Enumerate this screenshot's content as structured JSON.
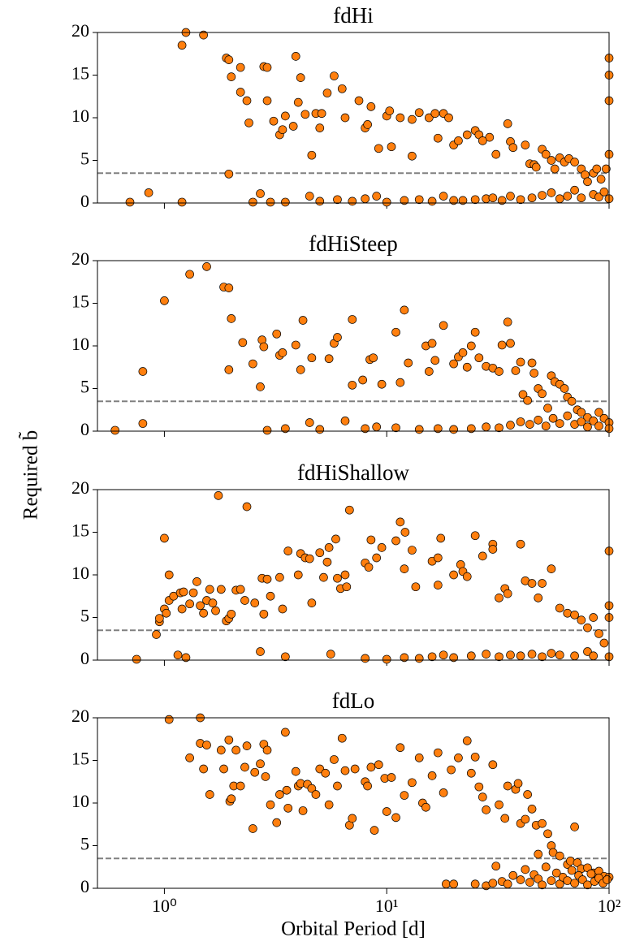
{
  "supylabel": "Required b̃",
  "chart_data": [
    {
      "type": "scatter",
      "title": "fdHi",
      "color": "#ff7f0e",
      "edgecolor": "#000000",
      "hline": 3.5,
      "hline_color": "#808080",
      "xlim": [
        0.5,
        100
      ],
      "xscale": "log",
      "ylim": [
        0,
        20
      ],
      "yticks": [
        0,
        5,
        10,
        15,
        20
      ],
      "x": [
        1.25,
        1.2,
        1.5,
        1.9,
        1.95,
        2.0,
        2.2,
        2.2,
        2.35,
        2.4,
        2.8,
        2.9,
        2.9,
        3.1,
        3.3,
        3.4,
        3.5,
        3.8,
        3.9,
        4.0,
        4.1,
        4.3,
        4.6,
        4.8,
        5.1,
        5.0,
        5.4,
        5.8,
        6.3,
        6.5,
        7.5,
        8.0,
        8.2,
        8.5,
        9.2,
        10,
        10.3,
        10.5,
        11.5,
        13,
        13,
        14,
        15.5,
        16.5,
        17,
        18,
        19,
        20,
        21,
        23,
        25,
        26,
        29,
        27,
        31,
        35,
        36,
        37,
        42,
        44,
        46,
        47,
        50,
        52,
        55,
        57,
        60,
        63,
        66,
        70,
        75,
        78,
        85,
        88,
        92,
        97,
        100,
        100,
        100,
        100,
        1.95,
        0.85,
        0.7,
        1.2,
        2.5,
        2.7,
        3.0,
        3.5,
        4.5,
        5,
        6,
        7,
        8,
        9,
        10,
        12,
        14,
        16,
        18,
        20,
        22,
        25,
        28,
        30,
        33,
        36,
        40,
        45,
        50,
        55,
        60,
        65,
        70,
        75,
        80,
        85,
        90,
        95,
        100
      ],
      "values": [
        20,
        18.5,
        19.7,
        17,
        16.8,
        14.8,
        15.9,
        13,
        12,
        9.4,
        16,
        15.9,
        12,
        9.6,
        8,
        8.6,
        10.2,
        9,
        17.2,
        11.8,
        14.7,
        10.4,
        5.6,
        10.5,
        10.5,
        8.8,
        12.9,
        14.9,
        13.4,
        10,
        12,
        8.8,
        9.2,
        11.3,
        6.4,
        10.2,
        10.8,
        6.6,
        10,
        9.8,
        5.5,
        10.6,
        10,
        10.5,
        7.6,
        10.5,
        10,
        6.8,
        7.3,
        8,
        8.5,
        8,
        7.7,
        7.3,
        5.7,
        9.3,
        7.2,
        6.5,
        6.8,
        4.6,
        4.5,
        4.2,
        6.3,
        5.7,
        5,
        4,
        5.3,
        4.8,
        5.2,
        4.8,
        4,
        3.3,
        3.5,
        4,
        2.8,
        4,
        5.7,
        12,
        15,
        17,
        3.4,
        1.2,
        0.1,
        0.1,
        0.1,
        1.1,
        0.1,
        0.1,
        0.8,
        0.2,
        0.4,
        0.2,
        0.5,
        0.8,
        0.1,
        0.3,
        0.4,
        0.2,
        0.8,
        0.3,
        0.3,
        0.4,
        0.5,
        0.6,
        0.3,
        0.8,
        0.4,
        0.6,
        0.9,
        1.2,
        0.5,
        0.8,
        1.5,
        0.6,
        2.5,
        1.0,
        0.7,
        1.3,
        0.5
      ]
    },
    {
      "type": "scatter",
      "title": "fdHiSteep",
      "color": "#ff7f0e",
      "edgecolor": "#000000",
      "hline": 3.5,
      "hline_color": "#808080",
      "xlim": [
        0.5,
        100
      ],
      "xscale": "log",
      "ylim": [
        0,
        20
      ],
      "yticks": [
        0,
        5,
        10,
        15,
        20
      ],
      "x": [
        0.6,
        0.8,
        0.8,
        1.0,
        1.3,
        1.55,
        1.85,
        1.95,
        2.0,
        1.95,
        2.25,
        2.5,
        2.7,
        2.75,
        2.8,
        3.2,
        3.3,
        3.4,
        3.9,
        4.1,
        4.2,
        4.6,
        5.5,
        5.8,
        6.0,
        7.0,
        7.0,
        7.8,
        8.4,
        8.7,
        9.5,
        11,
        11.5,
        12,
        12.5,
        15,
        15.5,
        16,
        16.5,
        18,
        20,
        21,
        22,
        23,
        24,
        25,
        26,
        28,
        30,
        32,
        33,
        35,
        36,
        38,
        40,
        41,
        43,
        45,
        46,
        48,
        50,
        53,
        55,
        57,
        60,
        63,
        65,
        68,
        72,
        75,
        80,
        85,
        90,
        95,
        100,
        2.9,
        3.5,
        4.5,
        5,
        6.5,
        8,
        9,
        11,
        14,
        17,
        20,
        24,
        28,
        32,
        36,
        40,
        44,
        48,
        52,
        56,
        60,
        65,
        70,
        75,
        80,
        90,
        100
      ],
      "values": [
        0.1,
        7,
        0.9,
        15.3,
        18.4,
        19.3,
        16.9,
        16.8,
        13.2,
        7.2,
        10.4,
        7.9,
        5.2,
        10.7,
        9.9,
        11.4,
        8.9,
        9.2,
        10.1,
        7.2,
        13,
        8.6,
        8.5,
        10.3,
        11,
        13.1,
        5.4,
        6,
        8.4,
        8.6,
        5.5,
        11.6,
        5.7,
        14.2,
        8,
        10,
        7,
        10.3,
        8.3,
        12.4,
        7.9,
        8.7,
        9.2,
        7.5,
        10,
        11.6,
        8.6,
        7.6,
        7.4,
        7,
        10.1,
        12.8,
        10.3,
        7.1,
        8.1,
        4.3,
        3.6,
        8,
        6.8,
        5,
        4.4,
        2.7,
        6.5,
        5.8,
        5.5,
        5,
        4,
        3.5,
        2.5,
        2.2,
        1.6,
        1.2,
        2.2,
        1.5,
        1,
        0.1,
        0.3,
        1,
        0.2,
        1.2,
        0.3,
        0.5,
        0.4,
        0.2,
        0.3,
        0.2,
        0.3,
        0.5,
        0.4,
        0.7,
        1.1,
        0.8,
        1.3,
        0.6,
        1.5,
        0.9,
        1.8,
        0.8,
        1.1,
        0.5,
        0.6,
        0.3
      ]
    },
    {
      "type": "scatter",
      "title": "fdHiShallow",
      "color": "#ff7f0e",
      "edgecolor": "#000000",
      "hline": 3.5,
      "hline_color": "#808080",
      "xlim": [
        0.5,
        100
      ],
      "xscale": "log",
      "ylim": [
        0,
        20
      ],
      "yticks": [
        0,
        5,
        10,
        15,
        20
      ],
      "x": [
        0.75,
        0.92,
        0.95,
        0.95,
        1.0,
        1.0,
        1.02,
        1.05,
        1.05,
        1.1,
        1.15,
        1.18,
        1.2,
        1.22,
        1.25,
        1.3,
        1.35,
        1.4,
        1.45,
        1.5,
        1.55,
        1.6,
        1.65,
        1.7,
        1.75,
        1.8,
        1.9,
        1.95,
        2.0,
        2.1,
        2.2,
        2.3,
        2.35,
        2.55,
        2.7,
        2.75,
        2.8,
        2.9,
        3.0,
        3.3,
        3.4,
        3.5,
        3.6,
        4.0,
        4.1,
        4.3,
        4.5,
        4.6,
        5.0,
        5.2,
        5.4,
        5.5,
        5.6,
        5.9,
        6.0,
        6.2,
        6.5,
        6.6,
        6.8,
        8,
        8.3,
        8.5,
        9,
        9.5,
        11,
        11.5,
        12,
        12.1,
        13,
        13.5,
        16,
        17,
        17,
        17.5,
        20,
        21.5,
        22,
        23,
        25,
        27,
        30,
        30,
        32,
        34,
        35,
        40,
        42,
        45,
        48,
        50,
        55,
        60,
        65,
        70,
        75,
        80,
        85,
        90,
        100,
        100,
        100,
        8,
        10,
        12,
        14,
        16,
        18,
        20,
        24,
        28,
        32,
        36,
        40,
        45,
        50,
        55,
        60,
        70,
        80,
        85,
        95,
        100
      ],
      "values": [
        0.1,
        3,
        4.5,
        4.9,
        14.3,
        6,
        5.5,
        10,
        7,
        7.5,
        0.6,
        7.9,
        6,
        8,
        0.3,
        6.6,
        7.9,
        9.2,
        6.4,
        5.5,
        7,
        8.3,
        6.7,
        5.8,
        19.3,
        8.3,
        4.6,
        4.9,
        5.4,
        8.2,
        8.3,
        7,
        18,
        6.7,
        1,
        9.6,
        5.4,
        9.5,
        7.5,
        9.7,
        6,
        0.4,
        12.8,
        10,
        12.5,
        12,
        11.9,
        6.7,
        12.6,
        9.7,
        11.5,
        13.2,
        0.7,
        14.2,
        9.6,
        8.4,
        10,
        8.6,
        17.6,
        11.4,
        10.9,
        14.1,
        12,
        13.2,
        14,
        16.2,
        10.7,
        15,
        12.9,
        8.6,
        11.6,
        8.8,
        12,
        14.3,
        10,
        11.2,
        10.4,
        9.8,
        14.6,
        12.2,
        13.6,
        13,
        7.3,
        8.4,
        7.8,
        13.6,
        9.3,
        9,
        7.3,
        9,
        10.7,
        6.1,
        5.5,
        5.3,
        4.7,
        3.8,
        5,
        3.1,
        6.4,
        5,
        12.8,
        0.2,
        0.1,
        0.3,
        0.2,
        0.4,
        0.6,
        0.3,
        0.5,
        0.7,
        0.4,
        0.6,
        0.5,
        0.7,
        0.4,
        0.8,
        0.6,
        0.5,
        1.0,
        0.5,
        2,
        0.4
      ]
    },
    {
      "type": "scatter",
      "title": "fdLo",
      "color": "#ff7f0e",
      "edgecolor": "#000000",
      "hline": 3.5,
      "hline_color": "#808080",
      "xlim": [
        0.5,
        100
      ],
      "xscale": "log",
      "ylim": [
        0,
        20
      ],
      "yticks": [
        0,
        5,
        10,
        15,
        20
      ],
      "xticks": [
        {
          "value": 1,
          "label": "10⁰"
        },
        {
          "value": 10,
          "label": "10¹"
        },
        {
          "value": 100,
          "label": "10²"
        }
      ],
      "xlabel": "Orbital Period [d]",
      "x": [
        1.05,
        1.45,
        1.3,
        1.45,
        1.5,
        1.55,
        1.6,
        1.8,
        1.85,
        1.95,
        1.97,
        2.0,
        2.05,
        2.1,
        2.2,
        2.3,
        2.35,
        2.5,
        2.55,
        2.7,
        2.8,
        2.85,
        2.9,
        3.0,
        3.2,
        3.3,
        3.5,
        3.55,
        3.6,
        3.9,
        4.0,
        4.1,
        4.2,
        4.4,
        4.6,
        4.8,
        5.0,
        5.3,
        5.5,
        5.8,
        6.0,
        6.3,
        6.5,
        6.8,
        7.0,
        7.2,
        8,
        8.2,
        8.5,
        8.8,
        9.2,
        9.8,
        10,
        10.5,
        11,
        11.5,
        12,
        13,
        14,
        14.5,
        15,
        16,
        17,
        18,
        18.5,
        19.5,
        20,
        21,
        23,
        24,
        25,
        26,
        27,
        28,
        30,
        31,
        32,
        34,
        35,
        38,
        39,
        40,
        42,
        43,
        45,
        47,
        48,
        50,
        53,
        55,
        56,
        60,
        65,
        67,
        70,
        72,
        75,
        80,
        85,
        90,
        95,
        100,
        25,
        28,
        30,
        33,
        35,
        37,
        40,
        42,
        44,
        46,
        48,
        50,
        52,
        55,
        58,
        60,
        62,
        65,
        68,
        70,
        73,
        76,
        80,
        83,
        86,
        90,
        94,
        98
      ],
      "values": [
        19.8,
        20,
        15.3,
        17,
        14,
        16.8,
        11,
        16.2,
        14,
        17.4,
        10.2,
        10.5,
        12,
        16.2,
        12,
        14.2,
        16.7,
        7,
        13.6,
        14.6,
        16.9,
        13.1,
        16.2,
        9.8,
        7.7,
        11,
        18.3,
        11.5,
        9.4,
        13.7,
        12,
        12.3,
        9.1,
        12.2,
        11.7,
        11,
        14,
        13.5,
        9.8,
        15.1,
        12,
        17.6,
        13.8,
        7.4,
        8.2,
        14,
        12.5,
        12,
        14.2,
        6.8,
        14.5,
        12.9,
        9,
        13,
        8.3,
        16.5,
        10.9,
        12.4,
        15.3,
        10,
        9.5,
        13.2,
        15.9,
        11.2,
        0.5,
        13.9,
        0.5,
        15.3,
        17.3,
        13.5,
        15.4,
        11.9,
        10.7,
        9.2,
        14.5,
        2.6,
        9.8,
        8.2,
        12,
        11.6,
        12.3,
        7.6,
        8.1,
        11,
        9.3,
        7.4,
        4,
        7.6,
        6.4,
        5,
        4.2,
        3.8,
        2.8,
        3.2,
        7.2,
        3,
        2.3,
        2.4,
        1.8,
        2,
        1.4,
        1.3,
        0.5,
        0.3,
        0.6,
        0.8,
        0.5,
        1.5,
        1.0,
        2.2,
        0.7,
        1.6,
        1.1,
        0.4,
        2.5,
        0.9,
        1.8,
        0.5,
        1.3,
        0.9,
        2.1,
        0.6,
        1.5,
        1.0,
        0.4,
        1.7,
        0.8,
        1.2,
        0.6,
        1.0
      ]
    }
  ]
}
